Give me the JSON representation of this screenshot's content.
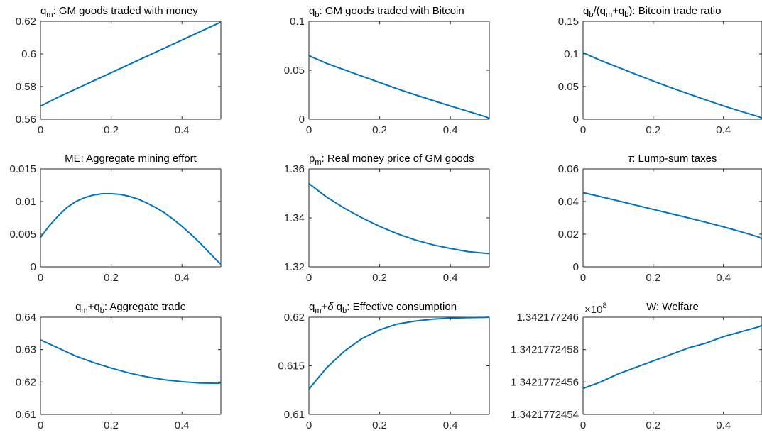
{
  "colors": {
    "line": "#0072BD",
    "axis": "#262626",
    "background": "#ffffff"
  },
  "chart_data": [
    {
      "type": "line",
      "title": "",
      "title_parts": [
        [
          "q",
          ""
        ],
        [
          "m",
          "sub"
        ],
        [
          ": GM goods traded with money",
          ""
        ]
      ],
      "x": [
        0,
        0.05,
        0.1,
        0.15,
        0.2,
        0.25,
        0.3,
        0.35,
        0.4,
        0.45,
        0.5,
        0.51
      ],
      "y": [
        0.568,
        0.5735,
        0.5785,
        0.5835,
        0.5885,
        0.5935,
        0.5985,
        0.6035,
        0.6085,
        0.6135,
        0.6185,
        0.6195
      ],
      "xlim": [
        0,
        0.51
      ],
      "ylim": [
        0.56,
        0.62
      ],
      "xticks": [
        0,
        0.2,
        0.4
      ],
      "xtick_labels": [
        "0",
        "0.2",
        "0.4"
      ],
      "yticks": [
        0.56,
        0.58,
        0.6,
        0.62
      ],
      "ytick_labels": [
        "0.56",
        "0.58",
        "0.6",
        "0.62"
      ],
      "title_align": "left",
      "exponent": null
    },
    {
      "type": "line",
      "title": "",
      "title_parts": [
        [
          "q",
          ""
        ],
        [
          "b",
          "sub"
        ],
        [
          ": GM goods traded with Bitcoin",
          ""
        ]
      ],
      "x": [
        0,
        0.05,
        0.1,
        0.15,
        0.2,
        0.25,
        0.3,
        0.35,
        0.4,
        0.45,
        0.5,
        0.51
      ],
      "y": [
        0.065,
        0.057,
        0.0505,
        0.044,
        0.0375,
        0.031,
        0.025,
        0.0192,
        0.0135,
        0.008,
        0.0025,
        0.0008
      ],
      "xlim": [
        0,
        0.51
      ],
      "ylim": [
        0,
        0.1
      ],
      "xticks": [
        0,
        0.2,
        0.4
      ],
      "xtick_labels": [
        "0",
        "0.2",
        "0.4"
      ],
      "yticks": [
        0,
        0.05,
        0.1
      ],
      "ytick_labels": [
        "0",
        "0.05",
        "0.1"
      ],
      "title_align": "left",
      "exponent": null
    },
    {
      "type": "line",
      "title": "",
      "title_parts": [
        [
          "q",
          ""
        ],
        [
          "b",
          "sub"
        ],
        [
          "/(q",
          ""
        ],
        [
          "m",
          "sub"
        ],
        [
          "+q",
          ""
        ],
        [
          "b",
          "sub"
        ],
        [
          "): Bitcoin trade ratio",
          ""
        ]
      ],
      "x": [
        0,
        0.05,
        0.1,
        0.15,
        0.2,
        0.25,
        0.3,
        0.35,
        0.4,
        0.45,
        0.5,
        0.51
      ],
      "y": [
        0.102,
        0.09,
        0.0795,
        0.069,
        0.0585,
        0.0485,
        0.039,
        0.0295,
        0.0205,
        0.012,
        0.004,
        0.0015
      ],
      "xlim": [
        0,
        0.51
      ],
      "ylim": [
        0,
        0.15
      ],
      "xticks": [
        0,
        0.2,
        0.4
      ],
      "xtick_labels": [
        "0",
        "0.2",
        "0.4"
      ],
      "yticks": [
        0,
        0.05,
        0.1,
        0.15
      ],
      "ytick_labels": [
        "0",
        "0.05",
        "0.1",
        "0.15"
      ],
      "title_align": "left",
      "exponent": null
    },
    {
      "type": "line",
      "title": "",
      "title_parts": [
        [
          "ME: Aggregate mining effort",
          ""
        ]
      ],
      "x": [
        0,
        0.025,
        0.05,
        0.075,
        0.1,
        0.125,
        0.15,
        0.175,
        0.2,
        0.225,
        0.25,
        0.275,
        0.3,
        0.325,
        0.35,
        0.375,
        0.4,
        0.425,
        0.45,
        0.475,
        0.5,
        0.51
      ],
      "y": [
        0.0045,
        0.0063,
        0.0078,
        0.0091,
        0.01,
        0.0106,
        0.011,
        0.0112,
        0.0112,
        0.0111,
        0.0108,
        0.0104,
        0.0098,
        0.0091,
        0.0083,
        0.0073,
        0.0062,
        0.005,
        0.0037,
        0.0023,
        0.0009,
        0.0004
      ],
      "xlim": [
        0,
        0.51
      ],
      "ylim": [
        0,
        0.015
      ],
      "xticks": [
        0,
        0.2,
        0.4
      ],
      "xtick_labels": [
        "0",
        "0.2",
        "0.4"
      ],
      "yticks": [
        0,
        0.005,
        0.01,
        0.015
      ],
      "ytick_labels": [
        "0",
        "0.005",
        "0.01",
        "0.015"
      ],
      "title_align": "center",
      "exponent": null
    },
    {
      "type": "line",
      "title": "",
      "title_parts": [
        [
          "p",
          ""
        ],
        [
          "m",
          "sub"
        ],
        [
          ": Real money price of GM goods",
          ""
        ]
      ],
      "x": [
        0,
        0.05,
        0.1,
        0.15,
        0.2,
        0.25,
        0.3,
        0.35,
        0.4,
        0.45,
        0.5,
        0.51
      ],
      "y": [
        1.354,
        1.3485,
        1.344,
        1.34,
        1.3365,
        1.3335,
        1.331,
        1.329,
        1.3275,
        1.3262,
        1.3255,
        1.3254
      ],
      "xlim": [
        0,
        0.51
      ],
      "ylim": [
        1.32,
        1.36
      ],
      "xticks": [
        0,
        0.2,
        0.4
      ],
      "xtick_labels": [
        "0",
        "0.2",
        "0.4"
      ],
      "yticks": [
        1.32,
        1.34,
        1.36
      ],
      "ytick_labels": [
        "1.32",
        "1.34",
        "1.36"
      ],
      "title_align": "left",
      "exponent": null
    },
    {
      "type": "line",
      "title": "",
      "title_parts": [
        [
          "τ",
          "greek"
        ],
        [
          ": Lump-sum taxes",
          ""
        ]
      ],
      "x": [
        0,
        0.05,
        0.1,
        0.15,
        0.2,
        0.25,
        0.3,
        0.35,
        0.4,
        0.45,
        0.5,
        0.51
      ],
      "y": [
        0.0455,
        0.043,
        0.0404,
        0.0378,
        0.0352,
        0.0326,
        0.03,
        0.0273,
        0.0245,
        0.0215,
        0.0183,
        0.0172
      ],
      "xlim": [
        0,
        0.51
      ],
      "ylim": [
        0,
        0.06
      ],
      "xticks": [
        0,
        0.2,
        0.4
      ],
      "xtick_labels": [
        "0",
        "0.2",
        "0.4"
      ],
      "yticks": [
        0,
        0.02,
        0.04,
        0.06
      ],
      "ytick_labels": [
        "0",
        "0.02",
        "0.04",
        "0.06"
      ],
      "title_align": "center",
      "exponent": null
    },
    {
      "type": "line",
      "title": "",
      "title_parts": [
        [
          "q",
          ""
        ],
        [
          "m",
          "sub"
        ],
        [
          "+q",
          ""
        ],
        [
          "b",
          "sub"
        ],
        [
          ": Aggregate trade",
          ""
        ]
      ],
      "x": [
        0,
        0.05,
        0.1,
        0.15,
        0.2,
        0.25,
        0.3,
        0.35,
        0.4,
        0.45,
        0.5,
        0.51
      ],
      "y": [
        0.633,
        0.6305,
        0.628,
        0.626,
        0.6243,
        0.6228,
        0.6216,
        0.6207,
        0.6201,
        0.6197,
        0.6196,
        0.6197
      ],
      "xlim": [
        0,
        0.51
      ],
      "ylim": [
        0.61,
        0.64
      ],
      "xticks": [
        0,
        0.2,
        0.4
      ],
      "xtick_labels": [
        "0",
        "0.2",
        "0.4"
      ],
      "yticks": [
        0.61,
        0.62,
        0.63,
        0.64
      ],
      "ytick_labels": [
        "0.61",
        "0.62",
        "0.63",
        "0.64"
      ],
      "title_align": "center",
      "exponent": null
    },
    {
      "type": "line",
      "title": "",
      "title_parts": [
        [
          "q",
          ""
        ],
        [
          "m",
          "sub"
        ],
        [
          "+",
          ""
        ],
        [
          "δ",
          "greek"
        ],
        [
          " q",
          ""
        ],
        [
          "b",
          "sub"
        ],
        [
          ": Effective consumption",
          ""
        ]
      ],
      "x": [
        0,
        0.05,
        0.1,
        0.15,
        0.2,
        0.25,
        0.3,
        0.35,
        0.4,
        0.45,
        0.5,
        0.51
      ],
      "y": [
        0.6126,
        0.6148,
        0.6165,
        0.6178,
        0.6187,
        0.6193,
        0.6196,
        0.6198,
        0.6199,
        0.61995,
        0.61998,
        0.62
      ],
      "xlim": [
        0,
        0.51
      ],
      "ylim": [
        0.61,
        0.62
      ],
      "xticks": [
        0,
        0.2,
        0.4
      ],
      "xtick_labels": [
        "0",
        "0.2",
        "0.4"
      ],
      "yticks": [
        0.61,
        0.615,
        0.62
      ],
      "ytick_labels": [
        "0.61",
        "0.615",
        "0.62"
      ],
      "title_align": "left",
      "exponent": null
    },
    {
      "type": "line",
      "title": "",
      "title_parts": [
        [
          "W: Welfare",
          ""
        ]
      ],
      "x": [
        0,
        0.05,
        0.1,
        0.15,
        0.2,
        0.25,
        0.3,
        0.35,
        0.4,
        0.45,
        0.5,
        0.51
      ],
      "y": [
        1.34217724556,
        1.3421772456,
        1.34217724565,
        1.34217724569,
        1.34217724573,
        1.34217724577,
        1.34217724581,
        1.34217724584,
        1.34217724588,
        1.34217724591,
        1.34217724594,
        1.34217724595
      ],
      "xlim": [
        0,
        0.51
      ],
      "ylim": [
        1.3421772454,
        1.342177246
      ],
      "xticks": [
        0,
        0.2,
        0.4
      ],
      "xtick_labels": [
        "0",
        "0.2",
        "0.4"
      ],
      "yticks": [
        1.3421772454,
        1.3421772456,
        1.3421772458,
        1.342177246
      ],
      "ytick_labels": [
        "1.3421772454",
        "1.3421772456",
        "1.3421772458",
        "1.342177246"
      ],
      "title_align": "center",
      "exponent": {
        "base": "×10",
        "power": "8"
      }
    }
  ]
}
